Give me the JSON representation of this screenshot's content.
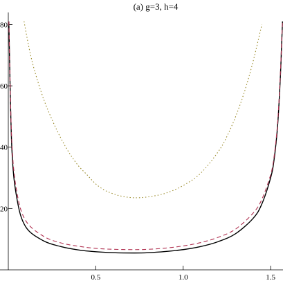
{
  "chart_data": {
    "type": "line",
    "title": "(a) g=3, h=4",
    "xlabel": "",
    "ylabel": "",
    "xlim": [
      0.0,
      1.5708
    ],
    "ylim": [
      0,
      81
    ],
    "x_ticks": [
      0.5,
      1.0,
      1.5
    ],
    "x_tick_labels": [
      "0.5",
      "1.0",
      "1.5"
    ],
    "y_ticks": [
      20,
      40,
      60,
      80
    ],
    "y_tick_labels": [
      "20",
      "40",
      "60",
      "80"
    ],
    "grid": false,
    "legend": "none",
    "series": [
      {
        "style": "solid",
        "color": "#000000",
        "x": [
          0.003,
          0.02,
          0.05,
          0.1,
          0.2,
          0.3,
          0.4,
          0.5,
          0.6,
          0.72,
          0.8,
          0.9,
          1.0,
          1.1,
          1.2,
          1.3,
          1.4,
          1.45,
          1.5,
          1.52,
          1.54,
          1.555,
          1.564,
          1.568
        ],
        "y": [
          81,
          40,
          23,
          14,
          9.5,
          7.6,
          6.5,
          5.9,
          5.6,
          5.5,
          5.6,
          6.0,
          6.6,
          7.6,
          9.2,
          11.8,
          16.8,
          21.5,
          30,
          36,
          47,
          62,
          75,
          81
        ]
      },
      {
        "style": "dashed",
        "color": "#b03050",
        "x": [
          0.003,
          0.02,
          0.05,
          0.1,
          0.2,
          0.3,
          0.4,
          0.5,
          0.6,
          0.72,
          0.8,
          0.9,
          1.0,
          1.1,
          1.2,
          1.3,
          1.4,
          1.45,
          1.5,
          1.52,
          1.54,
          1.555,
          1.564,
          1.568
        ],
        "y": [
          81,
          42,
          25,
          16,
          11,
          8.8,
          7.7,
          7.0,
          6.7,
          6.6,
          6.7,
          7.1,
          7.8,
          8.9,
          10.6,
          13.3,
          18.5,
          23,
          31,
          37,
          48,
          63,
          76,
          81
        ]
      },
      {
        "style": "dotted",
        "color": "#9a8a2a",
        "x": [
          0.09,
          0.12,
          0.15,
          0.2,
          0.25,
          0.3,
          0.35,
          0.4,
          0.45,
          0.5,
          0.55,
          0.6,
          0.65,
          0.72,
          0.8,
          0.9,
          1.0,
          1.1,
          1.2,
          1.25,
          1.3,
          1.35,
          1.4,
          1.45
        ],
        "y": [
          81,
          72,
          65,
          56,
          49,
          43,
          38,
          34,
          31,
          28,
          26,
          24.8,
          24.0,
          23.5,
          23.8,
          25,
          27.5,
          31.5,
          38.5,
          43.5,
          50,
          58,
          68,
          80
        ]
      }
    ]
  }
}
